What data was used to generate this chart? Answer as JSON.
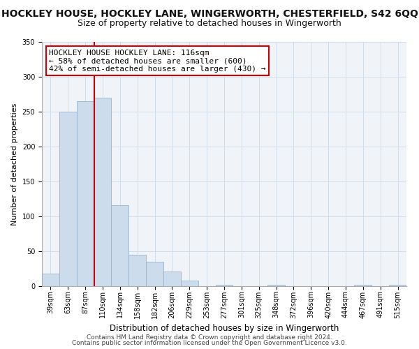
{
  "title": "HOCKLEY HOUSE, HOCKLEY LANE, WINGERWORTH, CHESTERFIELD, S42 6QQ",
  "subtitle": "Size of property relative to detached houses in Wingerworth",
  "xlabel": "Distribution of detached houses by size in Wingerworth",
  "ylabel": "Number of detached properties",
  "bar_labels": [
    "39sqm",
    "63sqm",
    "87sqm",
    "110sqm",
    "134sqm",
    "158sqm",
    "182sqm",
    "206sqm",
    "229sqm",
    "253sqm",
    "277sqm",
    "301sqm",
    "325sqm",
    "348sqm",
    "372sqm",
    "396sqm",
    "420sqm",
    "444sqm",
    "467sqm",
    "491sqm",
    "515sqm"
  ],
  "bar_values": [
    18,
    250,
    265,
    270,
    116,
    45,
    35,
    21,
    8,
    0,
    2,
    0,
    0,
    2,
    0,
    0,
    0,
    0,
    2,
    0,
    2
  ],
  "bar_color": "#ccdcec",
  "bar_edge_color": "#9ab4cc",
  "vline_color": "#cc0000",
  "vline_x_index": 3,
  "annotation_text": "HOCKLEY HOUSE HOCKLEY LANE: 116sqm\n← 58% of detached houses are smaller (600)\n42% of semi-detached houses are larger (430) →",
  "annotation_box_color": "#ffffff",
  "annotation_box_edge": "#cc0000",
  "ylim": [
    0,
    350
  ],
  "yticks": [
    0,
    50,
    100,
    150,
    200,
    250,
    300,
    350
  ],
  "footer1": "Contains HM Land Registry data © Crown copyright and database right 2024.",
  "footer2": "Contains public sector information licensed under the Open Government Licence v3.0.",
  "title_fontsize": 10,
  "subtitle_fontsize": 9,
  "xlabel_fontsize": 8.5,
  "ylabel_fontsize": 8,
  "tick_fontsize": 7,
  "annotation_fontsize": 8,
  "footer_fontsize": 6.5,
  "grid_color": "#d0dde8",
  "bg_color": "#f0f4f8"
}
